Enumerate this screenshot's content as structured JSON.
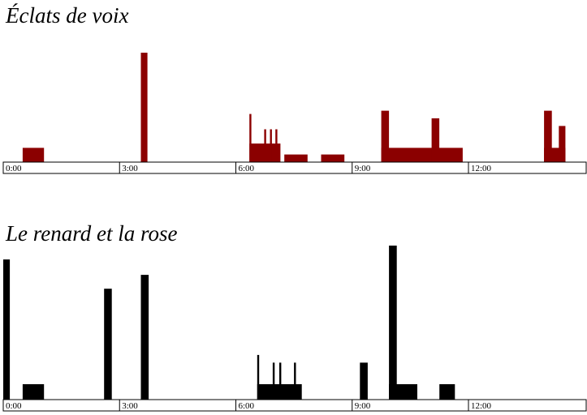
{
  "chart_data": [
    {
      "type": "bar",
      "title": "Éclats de voix",
      "color": "#8b0000",
      "x_unit": "minutes",
      "xlim": [
        0,
        14.5
      ],
      "ticks": [
        {
          "x": 0,
          "label": "0:00"
        },
        {
          "x": 3,
          "label": "3:00"
        },
        {
          "x": 6,
          "label": "6:00"
        },
        {
          "x": 9,
          "label": "9:00"
        },
        {
          "x": 12,
          "label": "12:00"
        }
      ],
      "ylim": [
        0,
        1
      ],
      "bars": [
        {
          "start": 0.5,
          "end": 1.05,
          "value": 0.13
        },
        {
          "start": 3.55,
          "end": 3.72,
          "value": 1.0
        },
        {
          "start": 6.35,
          "end": 6.4,
          "value": 0.44
        },
        {
          "start": 6.35,
          "end": 7.15,
          "value": 0.17
        },
        {
          "start": 6.73,
          "end": 6.78,
          "value": 0.3
        },
        {
          "start": 6.88,
          "end": 6.93,
          "value": 0.3
        },
        {
          "start": 7.02,
          "end": 7.07,
          "value": 0.3
        },
        {
          "start": 7.25,
          "end": 7.85,
          "value": 0.07
        },
        {
          "start": 8.2,
          "end": 8.8,
          "value": 0.07
        },
        {
          "start": 9.75,
          "end": 9.95,
          "value": 0.47
        },
        {
          "start": 9.75,
          "end": 11.85,
          "value": 0.13
        },
        {
          "start": 11.05,
          "end": 11.25,
          "value": 0.4
        },
        {
          "start": 13.95,
          "end": 14.15,
          "value": 0.47
        },
        {
          "start": 13.95,
          "end": 14.5,
          "value": 0.13
        },
        {
          "start": 14.33,
          "end": 14.5,
          "value": 0.33
        }
      ]
    },
    {
      "type": "bar",
      "title": "Le renard et la rose",
      "color": "#000000",
      "x_unit": "minutes",
      "xlim": [
        0,
        14.5
      ],
      "ticks": [
        {
          "x": 0,
          "label": "0:00"
        },
        {
          "x": 3,
          "label": "3:00"
        },
        {
          "x": 6,
          "label": "6:00"
        },
        {
          "x": 9,
          "label": "9:00"
        },
        {
          "x": 12,
          "label": "12:00"
        }
      ],
      "ylim": [
        0,
        1
      ],
      "bars": [
        {
          "start": 0.0,
          "end": 0.17,
          "value": 0.91
        },
        {
          "start": 0.5,
          "end": 1.05,
          "value": 0.1
        },
        {
          "start": 2.6,
          "end": 2.8,
          "value": 0.72
        },
        {
          "start": 3.55,
          "end": 3.75,
          "value": 0.81
        },
        {
          "start": 6.55,
          "end": 6.6,
          "value": 0.29
        },
        {
          "start": 6.55,
          "end": 7.7,
          "value": 0.1
        },
        {
          "start": 6.95,
          "end": 7.0,
          "value": 0.24
        },
        {
          "start": 7.12,
          "end": 7.17,
          "value": 0.24
        },
        {
          "start": 7.5,
          "end": 7.55,
          "value": 0.24
        },
        {
          "start": 9.2,
          "end": 9.4,
          "value": 0.24
        },
        {
          "start": 9.95,
          "end": 10.15,
          "value": 1.0
        },
        {
          "start": 9.95,
          "end": 10.68,
          "value": 0.1
        },
        {
          "start": 11.25,
          "end": 11.65,
          "value": 0.1
        }
      ]
    }
  ]
}
